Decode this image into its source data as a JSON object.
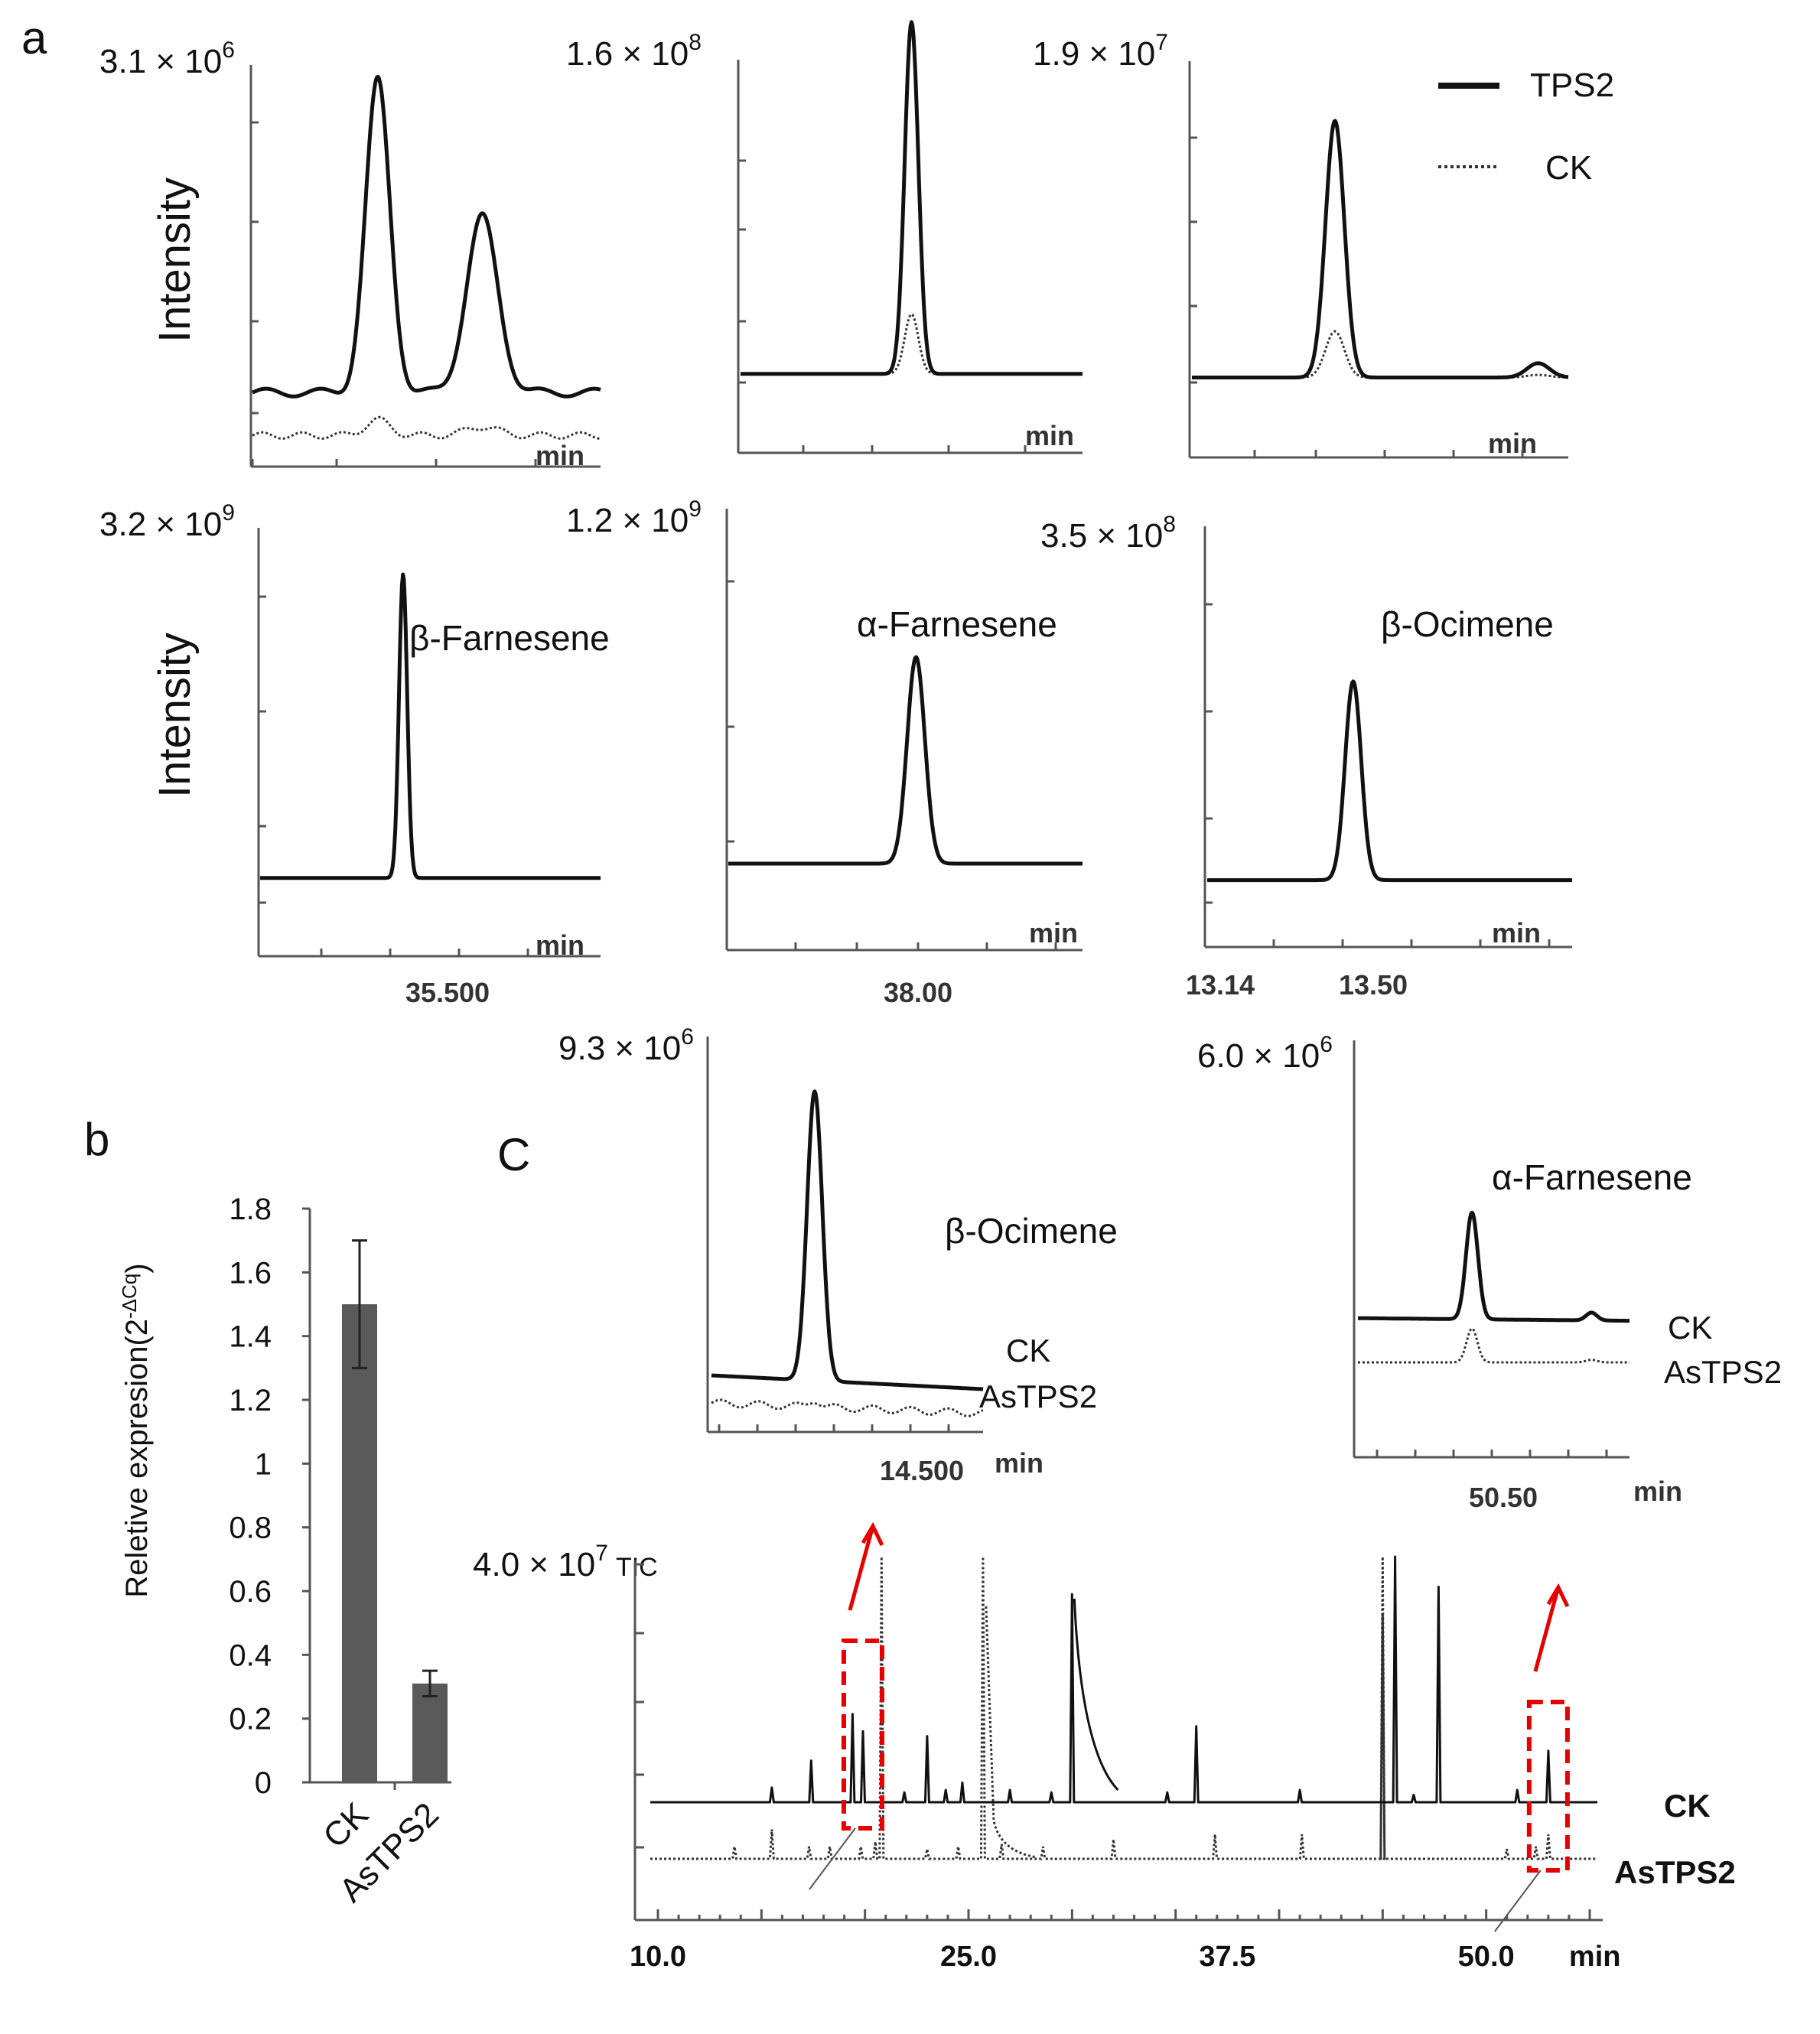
{
  "panels": {
    "a": "a",
    "b": "b",
    "c": "C"
  },
  "legend": {
    "solid": "TPS2",
    "dotted": "CK"
  },
  "chart_data": [
    {
      "id": "a1",
      "type": "line",
      "panel": "a",
      "scale": "3.1 × 10",
      "scale_exp": "6",
      "ylabel": "Intensity",
      "xunit": "min",
      "peaks": [
        {
          "rt": 0.36,
          "h": 0.8,
          "w": 0.035
        },
        {
          "rt": 0.66,
          "h": 0.45,
          "w": 0.045
        }
      ],
      "baseline": 0.18,
      "ck_factor": 0.05,
      "xticks": []
    },
    {
      "id": "a2",
      "type": "line",
      "panel": "a",
      "scale": "1.6 × 10",
      "scale_exp": "8",
      "ylabel": "",
      "xunit": "min",
      "peaks": [
        {
          "rt": 0.5,
          "h": 1.0,
          "w": 0.02
        }
      ],
      "baseline": 0.22,
      "ck_factor": 0.17,
      "xticks": []
    },
    {
      "id": "a3",
      "type": "line",
      "panel": "a",
      "scale": "1.9 × 10",
      "scale_exp": "7",
      "ylabel": "",
      "xunit": "min",
      "peaks": [
        {
          "rt": 0.38,
          "h": 0.72,
          "w": 0.025
        },
        {
          "rt": 0.92,
          "h": 0.04,
          "w": 0.03
        }
      ],
      "baseline": 0.22,
      "ck_factor": 0.18,
      "xticks": []
    },
    {
      "id": "a4",
      "type": "line",
      "panel": "a",
      "scale": "3.2 × 10",
      "scale_exp": "9",
      "ylabel": "Intensity",
      "xunit": "min",
      "compound": "β-Farnesene",
      "peaks": [
        {
          "rt": 0.42,
          "h": 0.95,
          "w": 0.012
        }
      ],
      "baseline": 0.24,
      "xticks": [
        "35.500"
      ]
    },
    {
      "id": "a5",
      "type": "line",
      "panel": "a",
      "scale": "1.2 × 10",
      "scale_exp": "9",
      "ylabel": "",
      "xunit": "min",
      "compound": "α-Farnesene",
      "peaks": [
        {
          "rt": 0.53,
          "h": 0.73,
          "w": 0.025
        }
      ],
      "baseline": 0.3,
      "xticks": [
        "38.00"
      ]
    },
    {
      "id": "a6",
      "type": "line",
      "panel": "a",
      "scale": "3.5 × 10",
      "scale_exp": "8",
      "ylabel": "",
      "xunit": "min",
      "compound": "β-Ocimene",
      "peaks": [
        {
          "rt": 0.4,
          "h": 0.73,
          "w": 0.022
        }
      ],
      "baseline": 0.24,
      "xticks": [
        "13.14",
        "13.50"
      ]
    },
    {
      "id": "b",
      "type": "bar",
      "panel": "b",
      "categories": [
        "CK",
        "AsTPS2"
      ],
      "values": [
        1.5,
        0.31
      ],
      "errors": [
        0.2,
        0.04
      ],
      "ylabel": "Reletive expresion(2",
      "ylabel_sup": "-ΔCq",
      "ylabel_close": ")",
      "ylim": [
        0,
        1.8
      ],
      "yticks": [
        "0",
        "0.2",
        "0.4",
        "0.6",
        "0.8",
        "1",
        "1.2",
        "1.4",
        "1.6",
        "1.8"
      ]
    },
    {
      "id": "c1",
      "type": "line",
      "panel": "c",
      "scale": "9.3 × 10",
      "scale_exp": "6",
      "xunit": "min",
      "compound": "β-Ocimene",
      "series": [
        {
          "name": "CK",
          "style": "solid"
        },
        {
          "name": "AsTPS2",
          "style": "dotted"
        }
      ],
      "xticks": [
        "14.500"
      ]
    },
    {
      "id": "c2",
      "type": "line",
      "panel": "c",
      "scale": "6.0 × 10",
      "scale_exp": "6",
      "xunit": "min",
      "compound": "α-Farnesene",
      "series": [
        {
          "name": "CK",
          "style": "solid"
        },
        {
          "name": "AsTPS2",
          "style": "dotted"
        }
      ],
      "xticks": [
        "50.50"
      ]
    },
    {
      "id": "c3",
      "type": "line",
      "panel": "c",
      "scale": "4.0 × 10",
      "scale_exp": "7",
      "scale_suffix": "TIC",
      "xunit": "min",
      "series": [
        {
          "name": "CK",
          "style": "solid"
        },
        {
          "name": "AsTPS2",
          "style": "dotted"
        }
      ],
      "xlim": [
        10.0,
        55.0
      ],
      "xticks": [
        "10.0",
        "25.0",
        "37.5",
        "50.0"
      ],
      "xtick_values": [
        10.0,
        25.0,
        37.5,
        50.0
      ],
      "ck_peaks": [
        [
          15.5,
          0.06
        ],
        [
          17.4,
          0.17
        ],
        [
          19.4,
          0.36
        ],
        [
          19.9,
          0.29
        ],
        [
          21.9,
          0.04
        ],
        [
          23.0,
          0.27
        ],
        [
          23.9,
          0.05
        ],
        [
          24.7,
          0.08
        ],
        [
          27.0,
          0.05
        ],
        [
          29.0,
          0.04
        ],
        [
          30.0,
          0.85
        ],
        [
          34.6,
          0.04
        ],
        [
          36.0,
          0.31
        ],
        [
          41.0,
          0.05
        ],
        [
          46.5,
          0.03
        ],
        [
          47.7,
          0.88
        ],
        [
          51.5,
          0.05
        ],
        [
          53.0,
          0.21
        ]
      ],
      "as_peaks": [
        [
          13.7,
          0.05
        ],
        [
          15.5,
          0.12
        ],
        [
          17.3,
          0.05
        ],
        [
          18.3,
          0.05
        ],
        [
          19.8,
          0.05
        ],
        [
          20.5,
          0.07
        ],
        [
          23.0,
          0.04
        ],
        [
          24.5,
          0.05
        ],
        [
          26.6,
          0.06
        ],
        [
          28.6,
          0.05
        ],
        [
          32.0,
          0.08
        ],
        [
          36.9,
          0.1
        ],
        [
          41.1,
          0.1
        ],
        [
          45.0,
          1.0
        ],
        [
          51.0,
          0.04
        ],
        [
          52.4,
          0.05
        ],
        [
          53.0,
          0.1
        ]
      ],
      "saturated_ck": [
        45.6
      ],
      "saturated_as": [
        20.8,
        25.7,
        45.0
      ],
      "highlight_rt": [
        19.9,
        53.0
      ]
    }
  ]
}
